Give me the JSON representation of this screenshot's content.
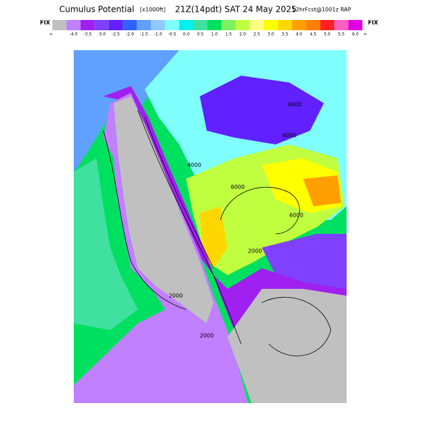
{
  "header": {
    "title": "Cumulus Potential",
    "units": "[x1000ft]",
    "valid": "21Z(14pdt) SAT 24 May 2025",
    "model": "12hrFcst@1001z RAP"
  },
  "legend": {
    "left_tag": "FIX",
    "right_tag": "FIX",
    "labels": [
      "<",
      "-4.0",
      "-3.5",
      "-3.0",
      "-2.5",
      "-2.0",
      "-1.5",
      "-1.0",
      "-0.5",
      "0.0",
      "0.5",
      "1.0",
      "1.5",
      "2.0",
      "2.5",
      "3.0",
      "3.5",
      "4.0",
      "4.5",
      "5.0",
      "5.5",
      "6.0",
      ">"
    ],
    "colors": [
      "#c0c0c0",
      "#c080ff",
      "#a020f0",
      "#8040ff",
      "#6020ff",
      "#3060ff",
      "#60a0ff",
      "#90c8ff",
      "#80ffff",
      "#00f0f0",
      "#40e0a0",
      "#00e060",
      "#80f060",
      "#c0ff40",
      "#ffff80",
      "#ffff00",
      "#ffd700",
      "#ffa000",
      "#ff8000",
      "#ff2020",
      "#ff60c0",
      "#e000e0"
    ]
  },
  "map": {
    "contour_labels": [
      "6000",
      "6000",
      "6000",
      "6000",
      "4000",
      "2000",
      "2000",
      "2000"
    ]
  }
}
